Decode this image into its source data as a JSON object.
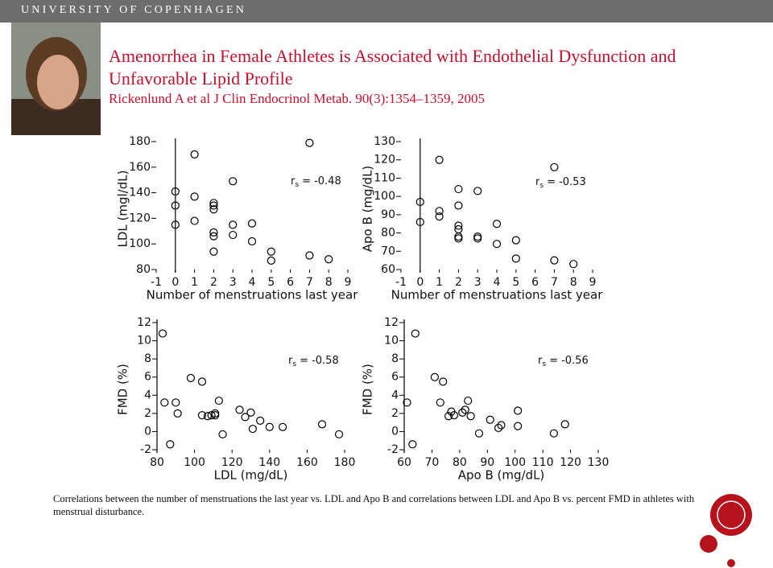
{
  "header": "UNIVERSITY OF COPENHAGEN",
  "title_lines": [
    "Amenorrhea in Female Athletes is Associated with Endothelial Dysfunction and",
    "Unfavorable Lipid Profile"
  ],
  "citation": "Rickenlund A et al J Clin Endocrinol Metab. 90(3):1354–1359, 2005",
  "caption": "Correlations between the number of menstruations the last year vs. LDL and Apo B and correlations between LDL and Apo B vs. percent FMD in athletes with menstrual disturbance.",
  "chart_data": [
    {
      "type": "scatter",
      "x_label": "Number of menstruations last year",
      "y_label": "LDL (mgl/dL)",
      "stat_symbol": "r",
      "stat_subscript": "s",
      "stat_value": "= -0.48",
      "yaxis_cross": 0,
      "xlim": [
        -1,
        9
      ],
      "xticks": [
        -1,
        0,
        1,
        2,
        3,
        4,
        5,
        6,
        7,
        8,
        9
      ],
      "ylim": [
        80,
        180
      ],
      "yticks": [
        80,
        100,
        120,
        140,
        160,
        180
      ],
      "color": "#000000",
      "x": [
        0,
        0,
        0,
        1,
        1,
        1,
        2,
        2,
        2,
        2,
        2,
        2,
        3,
        3,
        3,
        4,
        4,
        5,
        5,
        7,
        7,
        8
      ],
      "values": [
        141,
        130,
        115,
        170,
        137,
        118,
        132,
        130,
        127,
        109,
        106,
        94,
        149,
        115,
        107,
        116,
        102,
        94,
        87,
        179,
        91,
        88
      ]
    },
    {
      "type": "scatter",
      "x_label": "Number of menstruations last year",
      "y_label": "Apo B (mg/dL)",
      "stat_symbol": "r",
      "stat_subscript": "s",
      "stat_value": "= -0.53",
      "yaxis_cross": 0,
      "xlim": [
        -1,
        9
      ],
      "xticks": [
        -1,
        0,
        1,
        2,
        3,
        4,
        5,
        6,
        7,
        8,
        9
      ],
      "ylim": [
        60,
        130
      ],
      "yticks": [
        60,
        70,
        80,
        90,
        100,
        110,
        120,
        130
      ],
      "color": "#000000",
      "x": [
        0,
        0,
        1,
        1,
        1,
        2,
        2,
        2,
        2,
        2,
        2,
        3,
        3,
        3,
        4,
        4,
        5,
        5,
        7,
        7,
        8
      ],
      "values": [
        97,
        86,
        120,
        92,
        89,
        104,
        95,
        84,
        82,
        78,
        77,
        103,
        78,
        77,
        85,
        74,
        76,
        66,
        116,
        65,
        63
      ]
    },
    {
      "type": "scatter",
      "x_label": "LDL (mg/dL)",
      "y_label": "FMD (%)",
      "stat_symbol": "r",
      "stat_subscript": "s",
      "stat_value": "= -0.58",
      "xlim": [
        80,
        180
      ],
      "xticks": [
        80,
        100,
        120,
        140,
        160,
        180
      ],
      "ylim": [
        -2,
        12
      ],
      "yticks": [
        -2,
        0,
        2,
        4,
        6,
        8,
        10,
        12
      ],
      "color": "#000000",
      "x": [
        83,
        84,
        87,
        90,
        91,
        98,
        104,
        104,
        107,
        109,
        111,
        111,
        113,
        115,
        124,
        127,
        130,
        131,
        135,
        140,
        147,
        168,
        177
      ],
      "values": [
        10.8,
        3.2,
        -1.4,
        3.2,
        2.0,
        5.9,
        5.5,
        1.8,
        1.7,
        1.8,
        1.8,
        2.0,
        3.4,
        -0.3,
        2.4,
        1.6,
        2.1,
        0.3,
        1.2,
        0.5,
        0.5,
        0.8,
        -0.3
      ]
    },
    {
      "type": "scatter",
      "x_label": "Apo B (mg/dL)",
      "y_label": "FMD (%)",
      "stat_symbol": "r",
      "stat_subscript": "s",
      "stat_value": "= -0.56",
      "xlim": [
        60,
        130
      ],
      "xticks": [
        60,
        70,
        80,
        90,
        100,
        110,
        120,
        130
      ],
      "ylim": [
        -2,
        12
      ],
      "yticks": [
        -2,
        0,
        2,
        4,
        6,
        8,
        10,
        12
      ],
      "color": "#000000",
      "x": [
        64,
        61,
        63,
        71,
        74,
        73,
        77,
        76,
        78,
        81,
        82,
        83,
        84,
        87,
        91,
        94,
        95,
        101,
        101,
        114,
        118
      ],
      "values": [
        10.8,
        3.2,
        -1.4,
        6.0,
        5.5,
        3.2,
        2.2,
        1.7,
        1.8,
        2.1,
        2.4,
        3.4,
        1.7,
        -0.2,
        1.3,
        0.4,
        0.7,
        0.6,
        2.3,
        -0.2,
        0.8
      ]
    }
  ]
}
